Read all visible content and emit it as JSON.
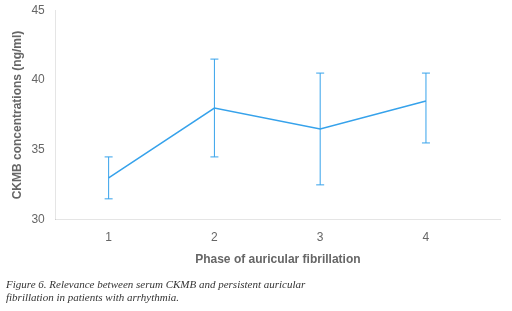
{
  "chart_data": {
    "type": "line",
    "xlabel": "Phase of auricular fibrillation",
    "ylabel": "CKMB concentrations (ng/ml)",
    "caption": [
      "Figure 6. Relevance between serum CKMB and persistent auricular",
      "fibrillation in patients with arrhythmia."
    ],
    "x": [
      1,
      2,
      3,
      4
    ],
    "values": [
      33.0,
      38.0,
      36.5,
      38.5
    ],
    "yerr_upper": [
      1.5,
      3.5,
      4.0,
      2.0
    ],
    "yerr_lower": [
      1.5,
      3.5,
      4.0,
      3.0
    ],
    "xlim": [
      0.5,
      4.7
    ],
    "xticks": [
      1,
      2,
      3,
      4
    ],
    "ylim": [
      30,
      45
    ],
    "yticks": [
      30,
      35,
      40,
      45
    ],
    "marker": "none",
    "grid": false
  }
}
